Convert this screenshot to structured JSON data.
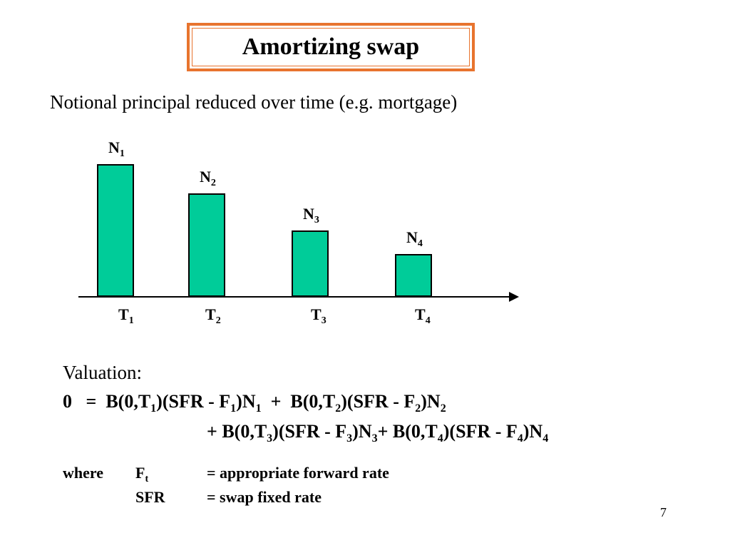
{
  "slide": {
    "title": "Amortizing swap",
    "subtitle": "Notional principal reduced over time (e.g. mortgage)",
    "page_number": "7"
  },
  "colors": {
    "title_border": "#E8742E",
    "bar_fill": "#00CC99"
  },
  "chart_data": {
    "type": "bar",
    "categories": [
      {
        "base": "T",
        "sub": "1"
      },
      {
        "base": "T",
        "sub": "2"
      },
      {
        "base": "T",
        "sub": "3"
      },
      {
        "base": "T",
        "sub": "4"
      }
    ],
    "bar_labels": [
      {
        "base": "N",
        "sub": "1"
      },
      {
        "base": "N",
        "sub": "2"
      },
      {
        "base": "N",
        "sub": "3"
      },
      {
        "base": "N",
        "sub": "4"
      }
    ],
    "relative_values": [
      1.0,
      0.78,
      0.5,
      0.32
    ]
  },
  "valuation": {
    "heading": "Valuation:",
    "line1": [
      {
        "t": "0   =  B(0,T"
      },
      {
        "s": "1"
      },
      {
        "t": ")(SFR - F"
      },
      {
        "s": "1"
      },
      {
        "t": ")N"
      },
      {
        "s": "1"
      },
      {
        "t": "  +  B(0,T"
      },
      {
        "s": "2"
      },
      {
        "t": ")(SFR - F"
      },
      {
        "s": "2"
      },
      {
        "t": ")N"
      },
      {
        "s": "2"
      }
    ],
    "line2": [
      {
        "t": "+ B(0,T"
      },
      {
        "s": "3"
      },
      {
        "t": ")(SFR - F"
      },
      {
        "s": "3"
      },
      {
        "t": ")N"
      },
      {
        "s": "3"
      },
      {
        "t": "+ B(0,T"
      },
      {
        "s": "4"
      },
      {
        "t": ")(SFR - F"
      },
      {
        "s": "4"
      },
      {
        "t": ")N"
      },
      {
        "s": "4"
      }
    ]
  },
  "where": {
    "keyword": "where",
    "rows": [
      {
        "term_base": "F",
        "term_sub": "t",
        "definition": "= appropriate forward rate"
      },
      {
        "term_base": "SFR",
        "term_sub": "",
        "definition": "= swap fixed rate"
      }
    ]
  }
}
